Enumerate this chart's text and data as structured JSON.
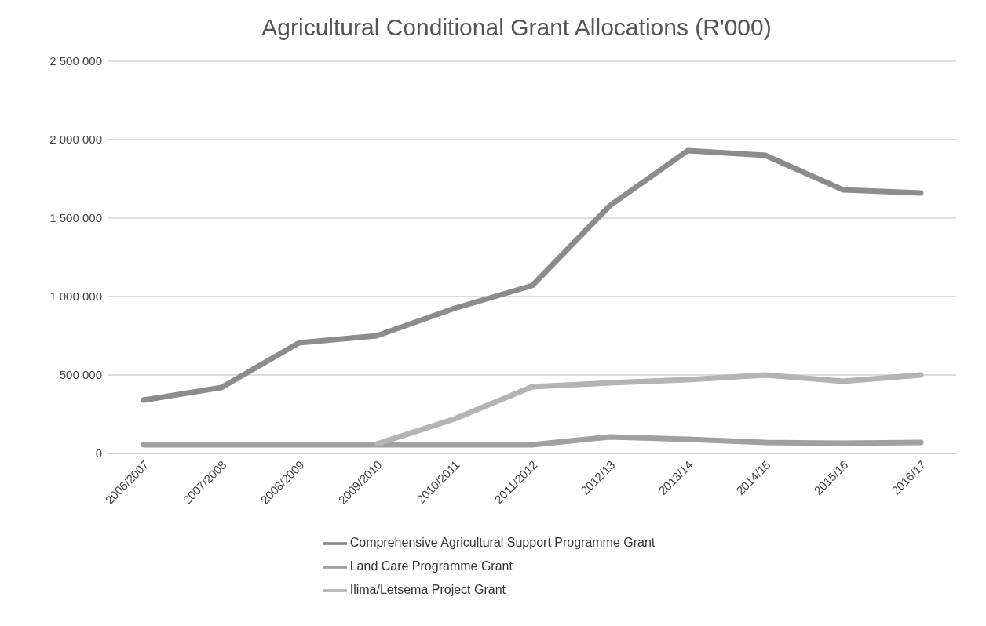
{
  "chart_data": {
    "type": "line",
    "title": "Agricultural Conditional Grant Allocations (R'000)",
    "categories": [
      "2006/2007",
      "2007/2008",
      "2008/2009",
      "2009/2010",
      "2010/2011",
      "2011/2012",
      "2012/13",
      "2013/14",
      "2014/15",
      "2015/16",
      "2016/17"
    ],
    "series": [
      {
        "name": "Comprehensive Agricultural Support Programme Grant",
        "color": "#8c8c8c",
        "values": [
          340000,
          420000,
          705000,
          750000,
          925000,
          1070000,
          1580000,
          1930000,
          1900000,
          1680000,
          1660000
        ]
      },
      {
        "name": "Land Care Programme Grant",
        "color": "#a0a0a0",
        "values": [
          55000,
          55000,
          55000,
          55000,
          55000,
          55000,
          105000,
          90000,
          70000,
          65000,
          70000
        ]
      },
      {
        "name": "Ilima/Letsema Project Grant",
        "color": "#b4b4b4",
        "values": [
          null,
          null,
          null,
          60000,
          220000,
          425000,
          450000,
          470000,
          500000,
          460000,
          500000
        ]
      }
    ],
    "ylim": [
      0,
      2500000
    ],
    "yticks": [
      {
        "value": 0,
        "label": "0"
      },
      {
        "value": 500000,
        "label": "500 000"
      },
      {
        "value": 1000000,
        "label": "1 000 000"
      },
      {
        "value": 1500000,
        "label": "1 500 000"
      },
      {
        "value": 2000000,
        "label": "2 000 000"
      },
      {
        "value": 2500000,
        "label": "2 500 000"
      }
    ],
    "grid": "y",
    "legend": "bottom",
    "marker": "none",
    "line_style": "solid"
  }
}
